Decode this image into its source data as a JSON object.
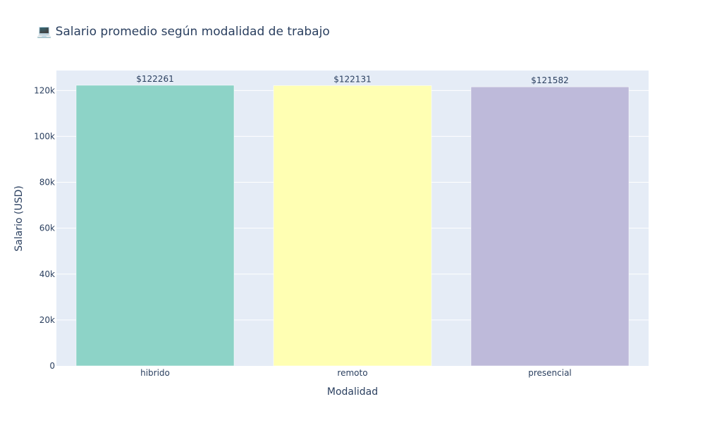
{
  "chart_data": {
    "type": "bar",
    "title": "💻 Salario promedio según modalidad de trabajo",
    "xlabel": "Modalidad",
    "ylabel": "Salario (USD)",
    "categories": [
      "hibrido",
      "remoto",
      "presencial"
    ],
    "values": [
      122261,
      122131,
      121582
    ],
    "value_labels": [
      "$122261",
      "$122131",
      "$121582"
    ],
    "colors": [
      "#8dd3c7",
      "#ffffb3",
      "#bebada"
    ],
    "ylim": [
      0,
      128700
    ],
    "yticks": [
      0,
      20000,
      40000,
      60000,
      80000,
      100000,
      120000
    ],
    "ytick_labels": [
      "0",
      "20k",
      "40k",
      "60k",
      "80k",
      "100k",
      "120k"
    ],
    "grid": true,
    "legend": "none",
    "plot_background": "#e5ecf6"
  }
}
